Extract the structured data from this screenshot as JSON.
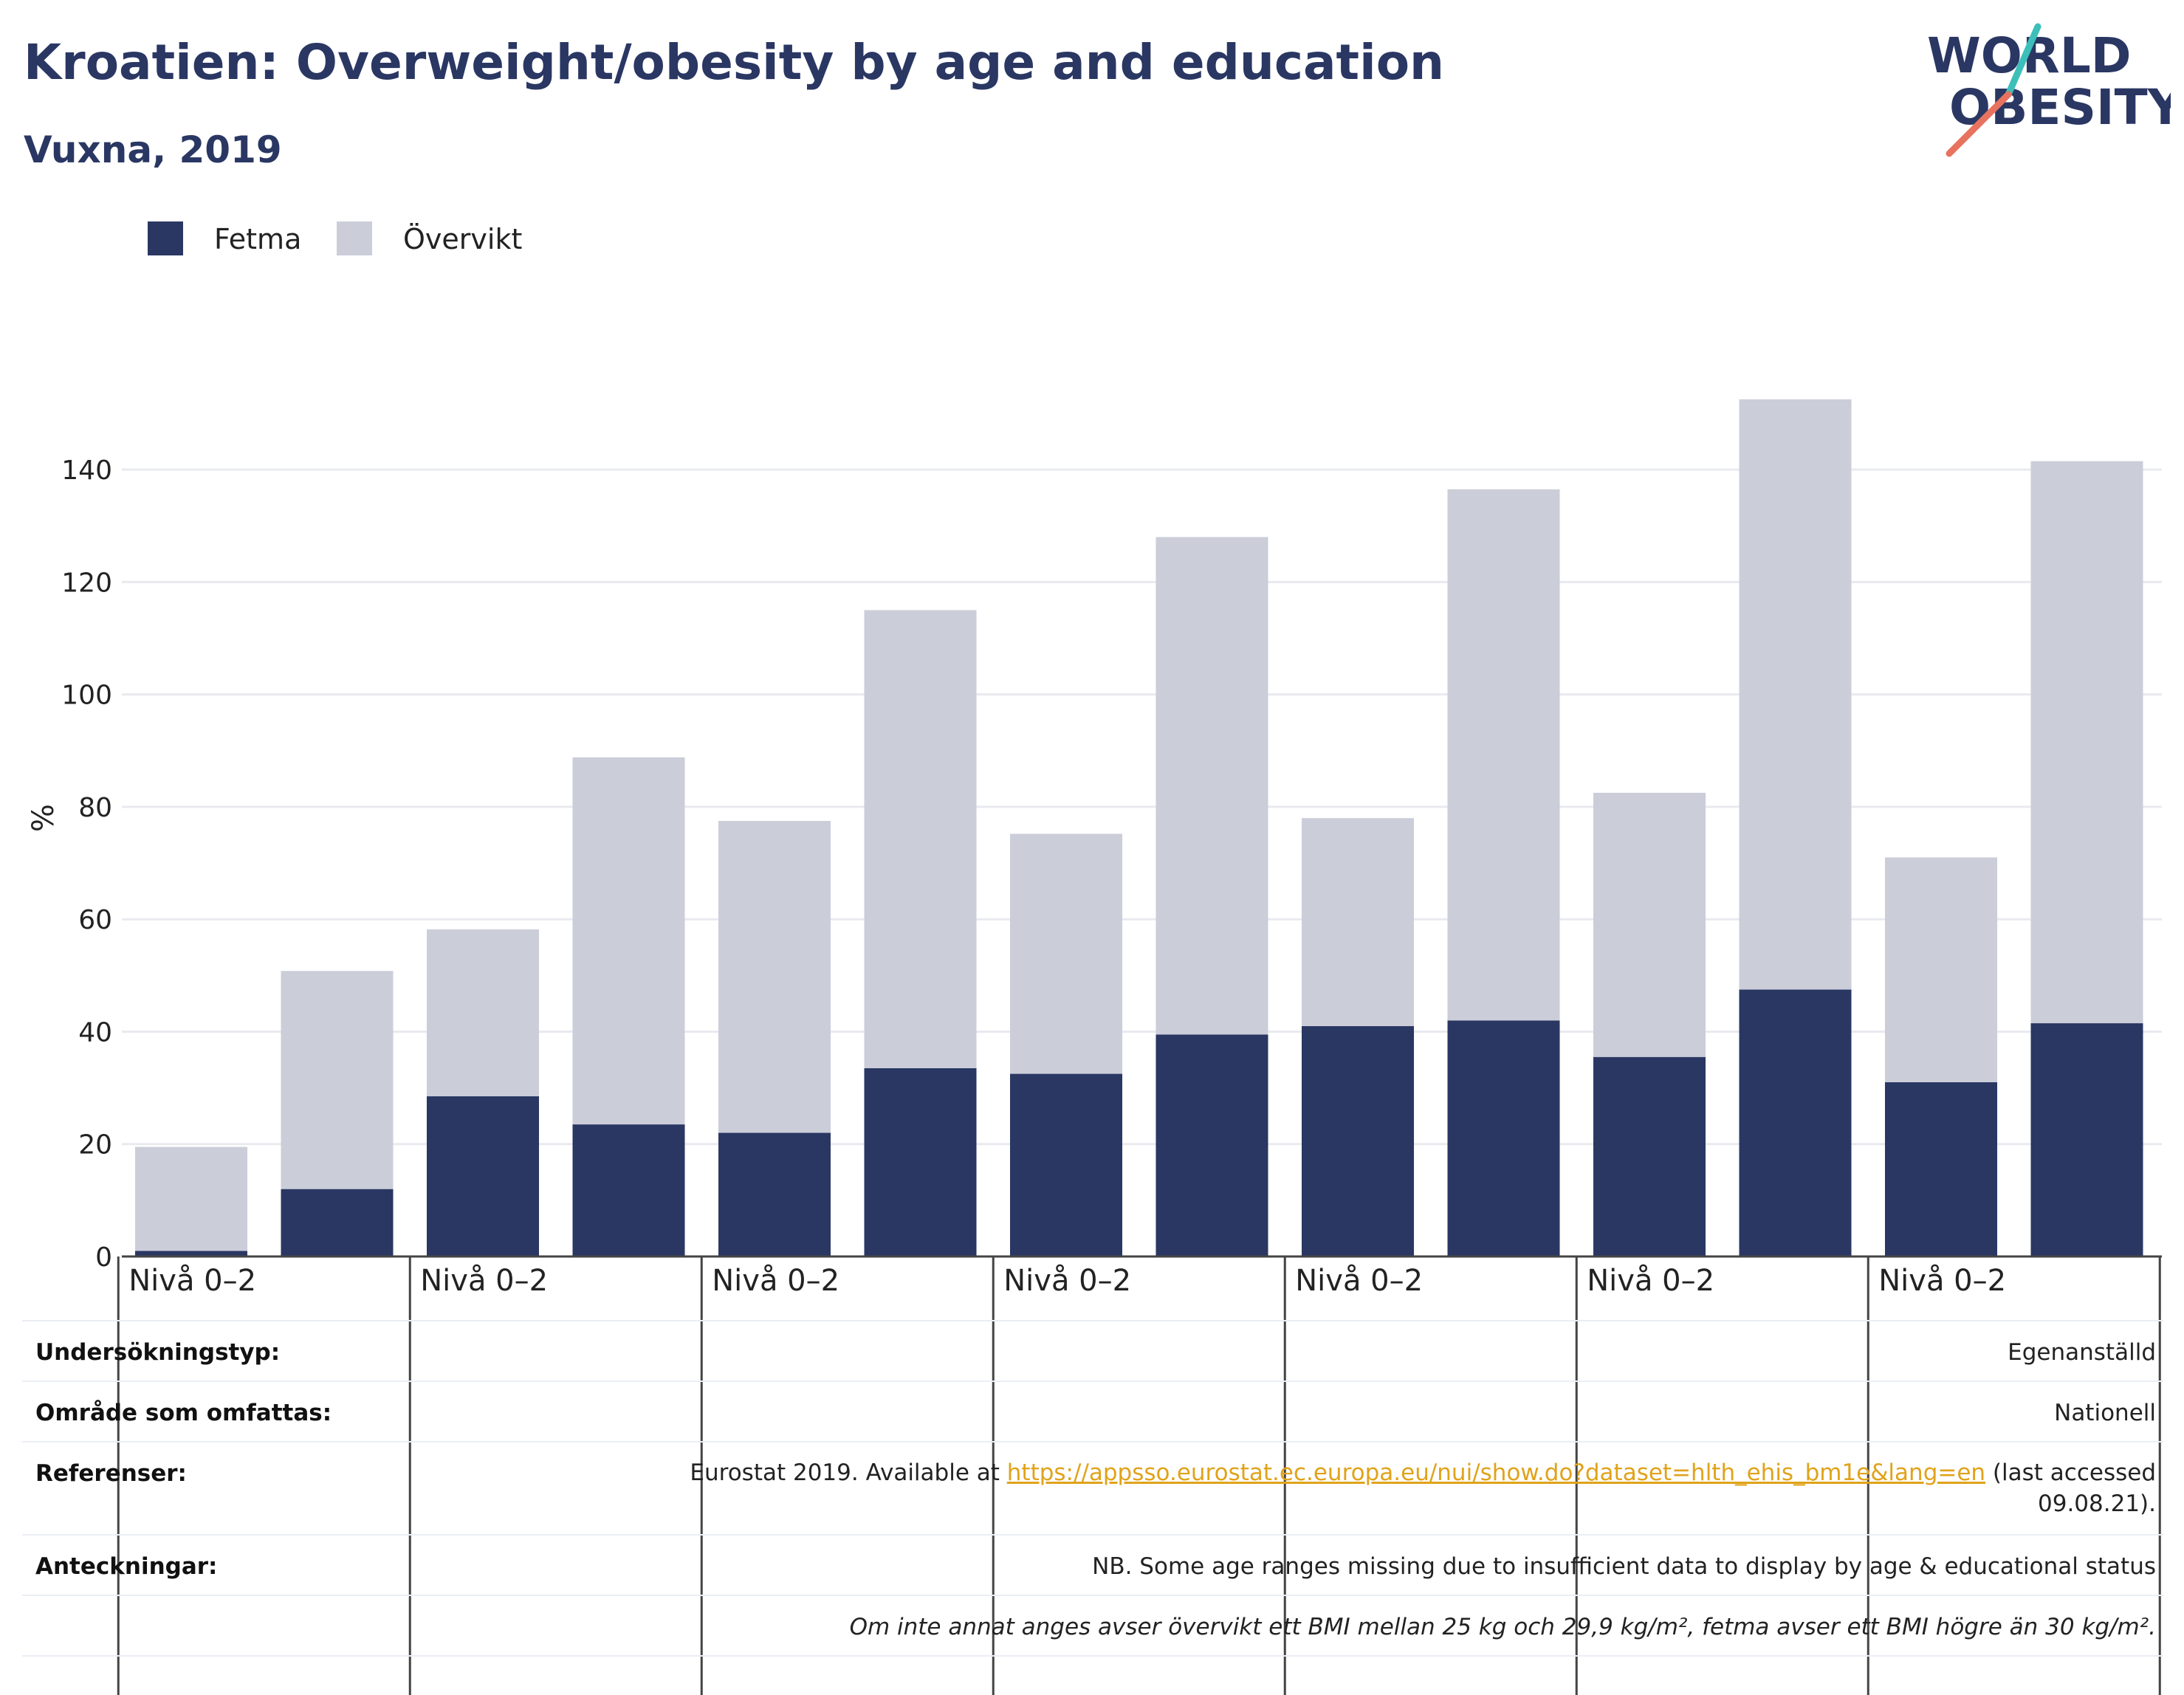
{
  "header": {
    "title": "Kroatien: Overweight/obesity by age and education",
    "subtitle": "Vuxna, 2019",
    "logo_line1": "WORLD",
    "logo_line2": "OBESITY"
  },
  "colors": {
    "fetma": "#2a3763",
    "overvikt": "#cbcdd9",
    "accent_teal": "#3cbfb9",
    "accent_coral": "#e7735f",
    "link": "#e0a31a"
  },
  "chart_data": {
    "type": "bar",
    "stacked": true,
    "ylabel": "%",
    "ylim": [
      0,
      150
    ],
    "yticks": [
      0,
      20,
      40,
      60,
      80,
      100,
      120,
      140
    ],
    "grid": true,
    "legend_position": "top-left",
    "group_labels": [
      "Nivå 0–2",
      "Nivå 0–2",
      "Nivå 0–2",
      "Nivå 0–2",
      "Nivå 0–2",
      "Nivå 0–2",
      "Nivå 0–2"
    ],
    "series": [
      {
        "name": "Fetma",
        "values": [
          1,
          12,
          28.5,
          23.5,
          22,
          33.5,
          32.5,
          39.5,
          41,
          42,
          35.5,
          47.5,
          31,
          41.5
        ]
      },
      {
        "name": "Övervikt",
        "values": [
          18.5,
          38.8,
          29.7,
          65.3,
          55.5,
          81.5,
          42.7,
          88.5,
          37,
          94.5,
          47,
          105,
          40,
          100
        ]
      }
    ]
  },
  "info": {
    "survey_type_label": "Undersökningstyp:",
    "survey_type_value": "Egenanställd",
    "area_label": "Område som omfattas:",
    "area_value": "Nationell",
    "references_label": "Referenser:",
    "references_prefix": "Eurostat 2019. Available at",
    "references_link": "https://appsso.eurostat.ec.europa.eu/nui/show.do?dataset=hlth_ehis_bm1e&lang=en",
    "references_suffix": "(last accessed",
    "references_date": "09.08.21).",
    "notes_label": "Anteckningar:",
    "notes_value": "NB. Some age ranges missing due to insufficient data to display by age & educational status",
    "footnote": "Om inte annat anges avser övervikt ett BMI mellan 25 kg och 29,9 kg/m², fetma avser ett BMI högre än 30 kg/m²."
  }
}
